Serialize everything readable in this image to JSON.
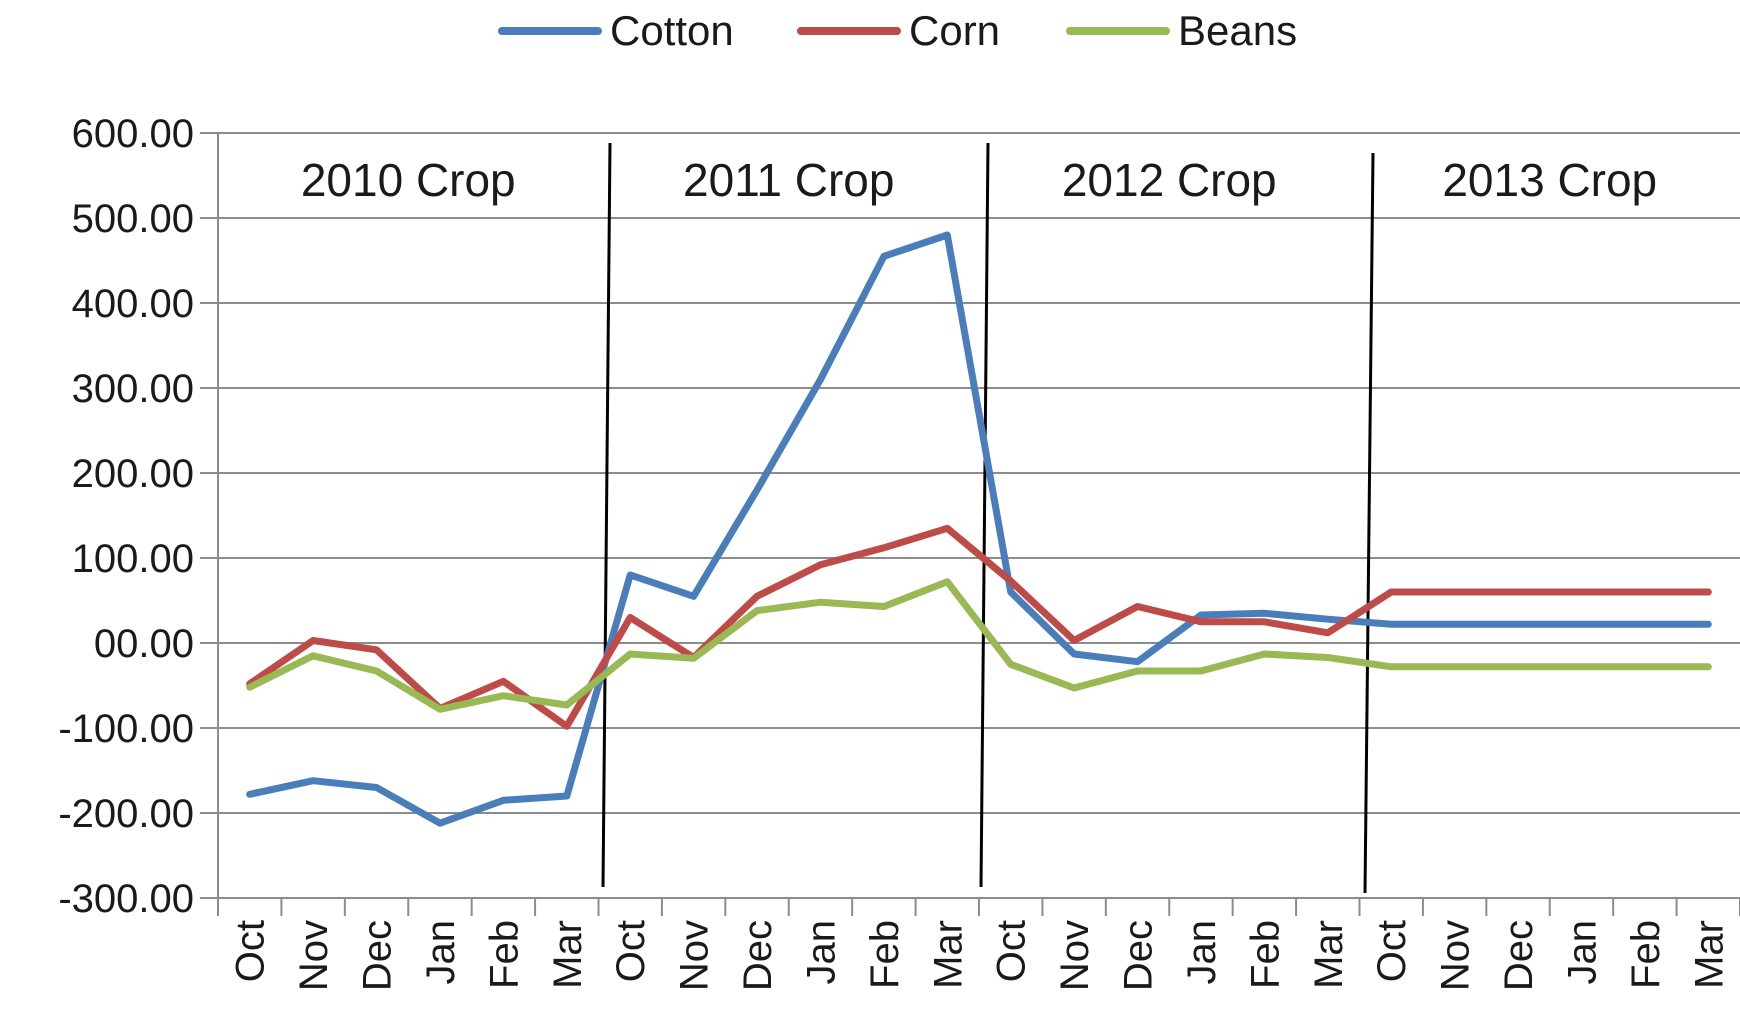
{
  "chart_data": {
    "type": "line",
    "title": "",
    "xlabel": "",
    "ylabel": "",
    "ylim": [
      -300,
      600
    ],
    "y_ticks": [
      600,
      500,
      400,
      300,
      200,
      100,
      0,
      -100,
      -200,
      -300
    ],
    "y_tick_labels": [
      "600.00",
      "500.00",
      "400.00",
      "300.00",
      "200.00",
      "100.00",
      "00.00",
      "-100.00",
      "-200.00",
      "-300.00"
    ],
    "categories": [
      "Oct",
      "Nov",
      "Dec",
      "Jan",
      "Feb",
      "Mar",
      "Oct",
      "Nov",
      "Dec",
      "Jan",
      "Feb",
      "Mar",
      "Oct",
      "Nov",
      "Dec",
      "Jan",
      "Feb",
      "Mar",
      "Oct",
      "Nov",
      "Dec",
      "Jan",
      "Feb",
      "Mar"
    ],
    "grid": true,
    "legend_position": "top",
    "series": [
      {
        "name": "Cotton",
        "color": "#4A7EBB",
        "values": [
          -178,
          -162,
          -170,
          -212,
          -185,
          -180,
          80,
          55,
          180,
          310,
          455,
          480,
          60,
          -13,
          -22,
          33,
          35,
          28,
          22,
          22,
          22,
          22,
          22,
          22
        ]
      },
      {
        "name": "Corn",
        "color": "#BE4B48",
        "values": [
          -48,
          3,
          -8,
          -77,
          -45,
          -98,
          30,
          -17,
          55,
          92,
          112,
          135,
          73,
          3,
          43,
          25,
          25,
          12,
          60,
          60,
          60,
          60,
          60,
          60
        ]
      },
      {
        "name": "Beans",
        "color": "#98B954",
        "values": [
          -52,
          -15,
          -33,
          -78,
          -62,
          -73,
          -13,
          -18,
          38,
          48,
          43,
          72,
          -25,
          -53,
          -33,
          -33,
          -13,
          -17,
          -28,
          -28,
          -28,
          -28,
          -28,
          -28
        ]
      }
    ],
    "annotations": [
      {
        "text": "2010 Crop"
      },
      {
        "text": "2011 Crop"
      },
      {
        "text": "2012 Crop"
      },
      {
        "text": "2013 Crop"
      }
    ]
  }
}
